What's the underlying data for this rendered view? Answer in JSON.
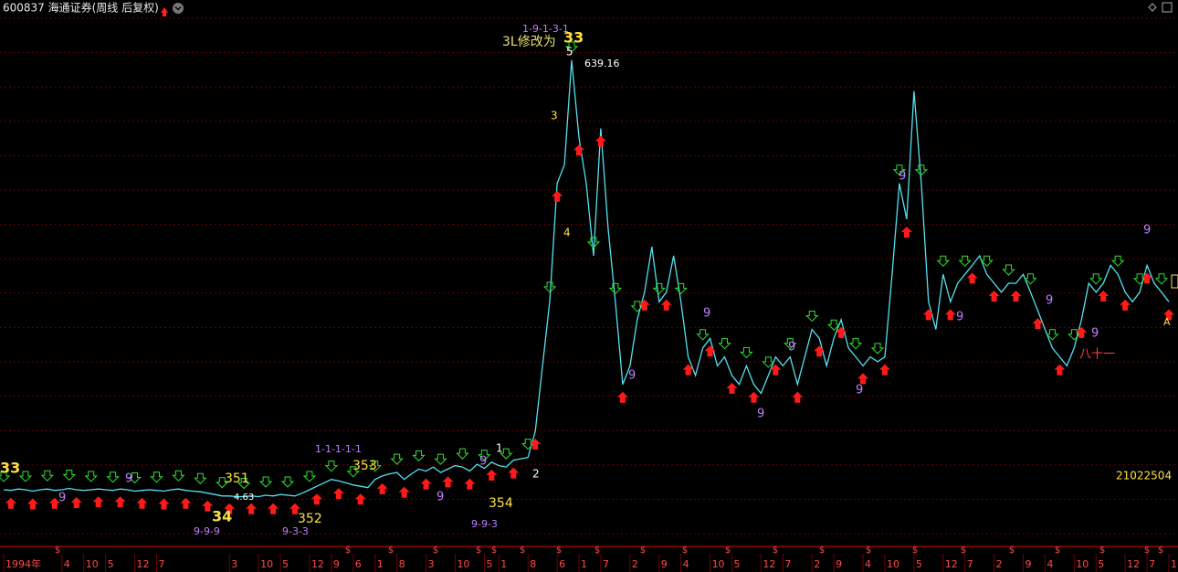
{
  "chart_data": {
    "type": "line",
    "title": "600837 海通证券(周线 后复权)",
    "color": "#54e1f0",
    "ylim": [
      -70,
      700
    ],
    "xlim": [
      0,
      160
    ],
    "values": [
      15,
      14,
      16,
      15,
      13,
      15,
      16,
      14,
      15,
      17,
      15,
      14,
      15,
      16,
      15,
      14,
      16,
      15,
      13,
      14,
      15,
      14,
      13,
      15,
      16,
      14,
      13,
      12,
      10,
      8,
      6,
      6,
      5,
      5,
      6,
      5,
      7,
      6,
      8,
      7,
      6,
      10,
      15,
      20,
      25,
      30,
      28,
      25,
      22,
      20,
      18,
      30,
      35,
      38,
      40,
      30,
      38,
      45,
      42,
      48,
      40,
      45,
      50,
      48,
      42,
      52,
      46,
      55,
      50,
      48,
      58,
      60,
      62,
      100,
      195,
      290,
      460,
      487,
      639,
      527,
      460,
      355,
      540,
      395,
      288,
      168,
      195,
      262,
      302,
      368,
      288,
      302,
      355,
      288,
      208,
      181,
      221,
      235,
      195,
      208,
      181,
      168,
      195,
      168,
      155,
      181,
      208,
      195,
      208,
      168,
      208,
      248,
      235,
      195,
      235,
      262,
      221,
      208,
      195,
      208,
      201,
      208,
      328,
      460,
      408,
      594,
      460,
      288,
      248,
      328,
      288,
      315,
      328,
      341,
      355,
      328,
      315,
      302,
      315,
      315,
      328,
      302,
      275,
      248,
      221,
      208,
      195,
      221,
      262,
      315,
      302,
      315,
      341,
      328,
      302,
      288,
      302,
      341,
      315,
      302,
      288
    ],
    "xticks": [
      {
        "value": 0,
        "label": "1994年"
      },
      {
        "value": 8,
        "label": "4"
      },
      {
        "value": 11,
        "label": "10"
      },
      {
        "value": 14,
        "label": "5"
      },
      {
        "value": 18,
        "label": "12"
      },
      {
        "value": 21,
        "label": "7"
      },
      {
        "value": 31,
        "label": "3"
      },
      {
        "value": 35,
        "label": "10"
      },
      {
        "value": 38,
        "label": "5"
      },
      {
        "value": 42,
        "label": "12"
      },
      {
        "value": 45,
        "label": "9"
      },
      {
        "value": 48,
        "label": "6"
      },
      {
        "value": 51,
        "label": "1"
      },
      {
        "value": 54,
        "label": "8"
      },
      {
        "value": 58,
        "label": "3"
      },
      {
        "value": 62,
        "label": "10"
      },
      {
        "value": 66,
        "label": "5"
      },
      {
        "value": 68,
        "label": "1"
      },
      {
        "value": 72,
        "label": "8"
      },
      {
        "value": 76,
        "label": "6"
      },
      {
        "value": 79,
        "label": "1"
      },
      {
        "value": 82,
        "label": "7"
      },
      {
        "value": 86,
        "label": "2"
      },
      {
        "value": 90,
        "label": "9"
      },
      {
        "value": 93,
        "label": "4"
      },
      {
        "value": 97,
        "label": "10"
      },
      {
        "value": 100,
        "label": "5"
      },
      {
        "value": 104,
        "label": "12"
      },
      {
        "value": 107,
        "label": "7"
      },
      {
        "value": 111,
        "label": "2"
      },
      {
        "value": 114,
        "label": "9"
      },
      {
        "value": 118,
        "label": "4"
      },
      {
        "value": 121,
        "label": "10"
      },
      {
        "value": 125,
        "label": "5"
      },
      {
        "value": 129,
        "label": "12"
      },
      {
        "value": 132,
        "label": "7"
      },
      {
        "value": 136,
        "label": "2"
      },
      {
        "value": 140,
        "label": "9"
      },
      {
        "value": 143,
        "label": "4"
      },
      {
        "value": 147,
        "label": "10"
      },
      {
        "value": 150,
        "label": "5"
      },
      {
        "value": 154,
        "label": "12"
      },
      {
        "value": 157,
        "label": "7"
      },
      {
        "value": 160,
        "label": "1"
      }
    ],
    "annotations": [
      "1-9-1-3-1",
      "3L修改为",
      "33",
      "5",
      "639.16",
      "3",
      "4",
      "1-1-1-1-1",
      "353",
      "351",
      "4.63",
      "34",
      "352",
      "9-9-9",
      "9-3-3",
      "9-9-3",
      "354",
      "1",
      "2",
      "21022504",
      "八十一",
      "A",
      "33"
    ],
    "count_label": "9",
    "dividend_marker": "$"
  }
}
